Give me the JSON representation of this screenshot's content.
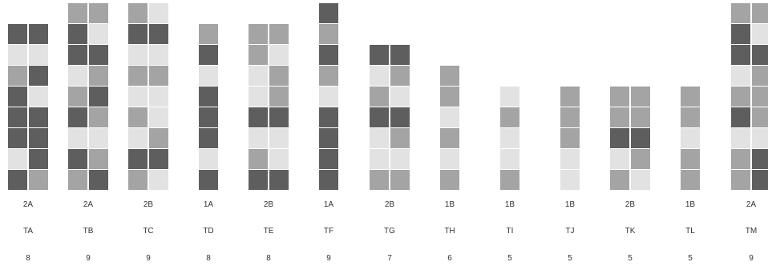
{
  "palette": {
    "D": "#5e5e5e",
    "M": "#a4a4a4",
    "L": "#e2e2e2"
  },
  "columns": [
    {
      "code": "2A",
      "name": "TA",
      "count": "8",
      "rows": [
        "DD",
        "LL",
        "MD",
        "DL",
        "DD",
        "DD",
        "LD",
        "DM"
      ]
    },
    {
      "code": "2A",
      "name": "TB",
      "count": "9",
      "rows": [
        "MM",
        "DL",
        "DD",
        "LM",
        "MD",
        "DM",
        "LL",
        "DM",
        "MD"
      ]
    },
    {
      "code": "2B",
      "name": "TC",
      "count": "9",
      "rows": [
        "ML",
        "DD",
        "LL",
        "MM",
        "LL",
        "ML",
        "LM",
        "DD",
        "ML"
      ]
    },
    {
      "code": "1A",
      "name": "TD",
      "count": "8",
      "rows": [
        "M",
        "D",
        "L",
        "D",
        "D",
        "D",
        "L",
        "D"
      ]
    },
    {
      "code": "2B",
      "name": "TE",
      "count": "8",
      "rows": [
        "MM",
        "ML",
        "LM",
        "LM",
        "DD",
        "LL",
        "ML",
        "DD"
      ]
    },
    {
      "code": "1A",
      "name": "TF",
      "count": "9",
      "rows": [
        "D",
        "M",
        "D",
        "M",
        "L",
        "D",
        "D",
        "D",
        "D"
      ]
    },
    {
      "code": "2B",
      "name": "TG",
      "count": "7",
      "rows": [
        "DD",
        "LM",
        "ML",
        "DD",
        "LM",
        "LL",
        "MM"
      ]
    },
    {
      "code": "1B",
      "name": "TH",
      "count": "6",
      "rows": [
        "M",
        "M",
        "L",
        "M",
        "L",
        "M"
      ]
    },
    {
      "code": "1B",
      "name": "TI",
      "count": "5",
      "rows": [
        "L",
        "M",
        "L",
        "L",
        "M"
      ]
    },
    {
      "code": "1B",
      "name": "TJ",
      "count": "5",
      "rows": [
        "M",
        "M",
        "M",
        "L",
        "L"
      ]
    },
    {
      "code": "2B",
      "name": "TK",
      "count": "5",
      "rows": [
        "MM",
        "MM",
        "DD",
        "LM",
        "ML"
      ]
    },
    {
      "code": "1B",
      "name": "TL",
      "count": "5",
      "rows": [
        "M",
        "M",
        "L",
        "M",
        "M"
      ]
    },
    {
      "code": "2A",
      "name": "TM",
      "count": "9",
      "rows": [
        "MM",
        "DL",
        "DD",
        "LM",
        "MM",
        "DM",
        "LL",
        "MD",
        "MD"
      ]
    }
  ]
}
